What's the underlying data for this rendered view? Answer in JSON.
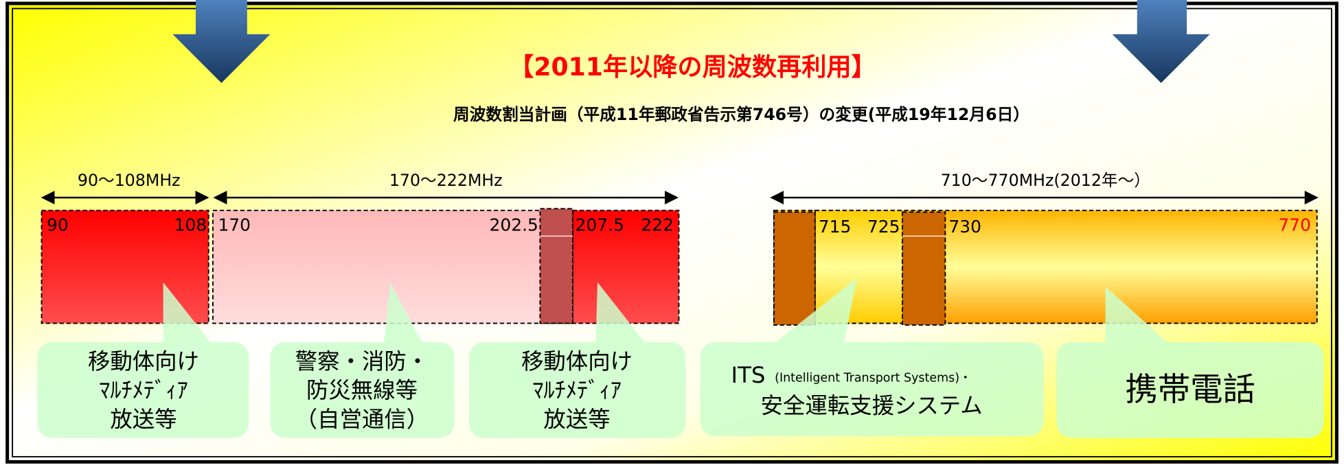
{
  "title": "【2011年以降の周波数再利用】",
  "subtitle": "周波数割当計画（平成11年郵政省告示第746号）の変更(平成19年12月6日）",
  "ranges": [
    "90～108MHz",
    "170～222MHz",
    "710～770MHz(2012年～）"
  ],
  "band_labels": [
    "90",
    "108",
    "170",
    "202.5",
    "207.5",
    "222",
    "715",
    "725",
    "730",
    "770"
  ],
  "callouts": [
    {
      "lines": [
        "移動体向け",
        "ﾏﾙﾁﾒﾃﾞｨｱ",
        "放送等"
      ]
    },
    {
      "lines": [
        "警察・消防・",
        "防災無線等",
        "（自営通信）"
      ]
    },
    {
      "lines": [
        "移動体向け",
        "ﾏﾙﾁﾒﾃﾞｨｱ",
        "放送等"
      ]
    },
    {
      "lines": [
        "ITS",
        "(Intelligent Transport Systems)・",
        "安全運転支援システム"
      ]
    },
    {
      "lines": [
        "携帯電話"
      ]
    }
  ]
}
